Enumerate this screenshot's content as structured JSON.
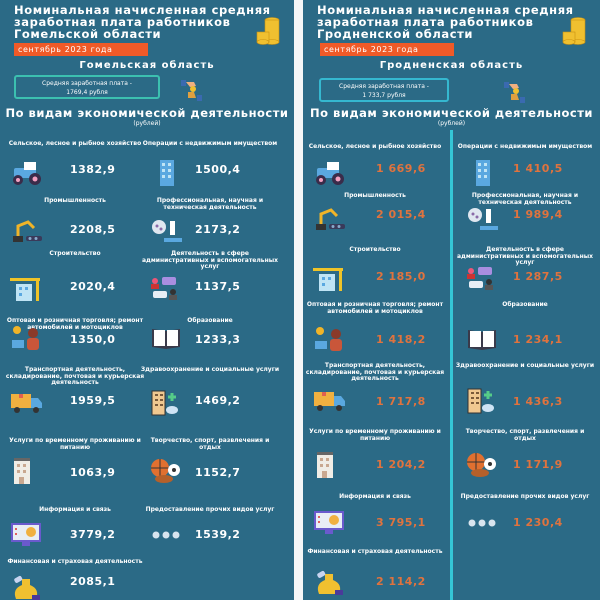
{
  "panels": [
    {
      "title": [
        "Номинальная начисленная средняя",
        "заработная плата работников",
        "Гомельской области"
      ],
      "date": "сентябрь 2023 года",
      "region": "Гомельская область",
      "average": [
        "Средняя заработная плата -",
        "1769,4 рубля"
      ],
      "subtitle": "По видам экономической деятельности",
      "unit": "(рублей)",
      "items": [
        {
          "label": "Сельское, лесное и рыбное хозяйство",
          "value": "1382,9",
          "icon": "tractor-icon"
        },
        {
          "label": "Операции с недвижимым имуществом",
          "value": "1500,4",
          "icon": "building-icon"
        },
        {
          "label": "Промышленность",
          "value": "2208,5",
          "icon": "robot-arm-icon"
        },
        {
          "label": "Профессиональная, научная и техническая деятельность",
          "value": "2173,2",
          "icon": "microscope-icon"
        },
        {
          "label": "Строительство",
          "value": "2020,4",
          "icon": "crane-icon"
        },
        {
          "label": "Деятельность в сфере административных и вспомогательных услуг",
          "value": "1137,5",
          "icon": "chat-people-icon"
        },
        {
          "label": "Оптовая и розничная торговля; ремонт автомобилей и мотоциклов",
          "value": "1350,0",
          "icon": "cashier-icon"
        },
        {
          "label": "Образование",
          "value": "1233,3",
          "icon": "book-icon"
        },
        {
          "label": "Транспортная деятельность, складирование, почтовая и курьерская деятельность",
          "value": "1959,5",
          "icon": "truck-icon"
        },
        {
          "label": "Здравоохранение и социальные услуги",
          "value": "1469,2",
          "icon": "hospital-icon"
        },
        {
          "label": "Услуги по временному проживанию и питанию",
          "value": "1063,9",
          "icon": "hotel-icon"
        },
        {
          "label": "Творчество, спорт, развлечения и отдых",
          "value": "1152,7",
          "icon": "sports-balls-icon"
        },
        {
          "label": "Информация и связь",
          "value": "3779,2",
          "icon": "monitor-chart-icon"
        },
        {
          "label": "Предоставление прочих видов услуг",
          "value": "1539,2",
          "icon": "dots-icon"
        },
        {
          "label": "Финансовая и страховая деятельность",
          "value": "2085,1",
          "icon": "money-bag-icon"
        }
      ]
    },
    {
      "title": [
        "Номинальная начисленная средняя",
        "заработная плата работников",
        "Гродненской области"
      ],
      "date": "сентябрь 2023 года",
      "region": "Гродненская область",
      "average": [
        "Средняя заработная плата -",
        "1 733,7 рубля"
      ],
      "subtitle": "По видам экономической деятельности",
      "unit": "(рублей)",
      "items": [
        {
          "label": "Сельское, лесное и рыбное хозяйство",
          "value": "1 669,6",
          "icon": "tractor-icon"
        },
        {
          "label": "Операции с недвижимым имуществом",
          "value": "1 410,5",
          "icon": "building-icon"
        },
        {
          "label": "Промышленность",
          "value": "2 015,4",
          "icon": "robot-arm-icon"
        },
        {
          "label": "Профессиональная, научная и техническая деятельность",
          "value": "1 989,4",
          "icon": "microscope-icon"
        },
        {
          "label": "Строительство",
          "value": "2 185,0",
          "icon": "crane-icon"
        },
        {
          "label": "Деятельность в сфере административных и вспомогательных услуг",
          "value": "1 287,5",
          "icon": "chat-people-icon"
        },
        {
          "label": "Оптовая и розничная торговля; ремонт автомобилей и мотоциклов",
          "value": "1 418,2",
          "icon": "cashier-icon"
        },
        {
          "label": "Образование",
          "value": "1 234,1",
          "icon": "book-icon"
        },
        {
          "label": "Транспортная деятельность, складирование, почтовая и курьерская деятельность",
          "value": "1 717,8",
          "icon": "truck-icon"
        },
        {
          "label": "Здравоохранение и социальные услуги",
          "value": "1 436,3",
          "icon": "hospital-icon"
        },
        {
          "label": "Услуги по временному проживанию и питанию",
          "value": "1 204,2",
          "icon": "hotel-icon"
        },
        {
          "label": "Творчество, спорт, развлечения и отдых",
          "value": "1 171,9",
          "icon": "sports-balls-icon"
        },
        {
          "label": "Информация и связь",
          "value": "3 795,1",
          "icon": "monitor-chart-icon"
        },
        {
          "label": "Предоставление прочих видов услуг",
          "value": "1 230,4",
          "icon": "dots-icon"
        },
        {
          "label": "Финансовая и страховая деятельность",
          "value": "2 114,2",
          "icon": "money-bag-icon"
        }
      ]
    }
  ],
  "colors": {
    "background": "#2b6a86",
    "accent": "#f05a28",
    "value_right": "#e0733e",
    "box_border": "#3cc0b0"
  }
}
